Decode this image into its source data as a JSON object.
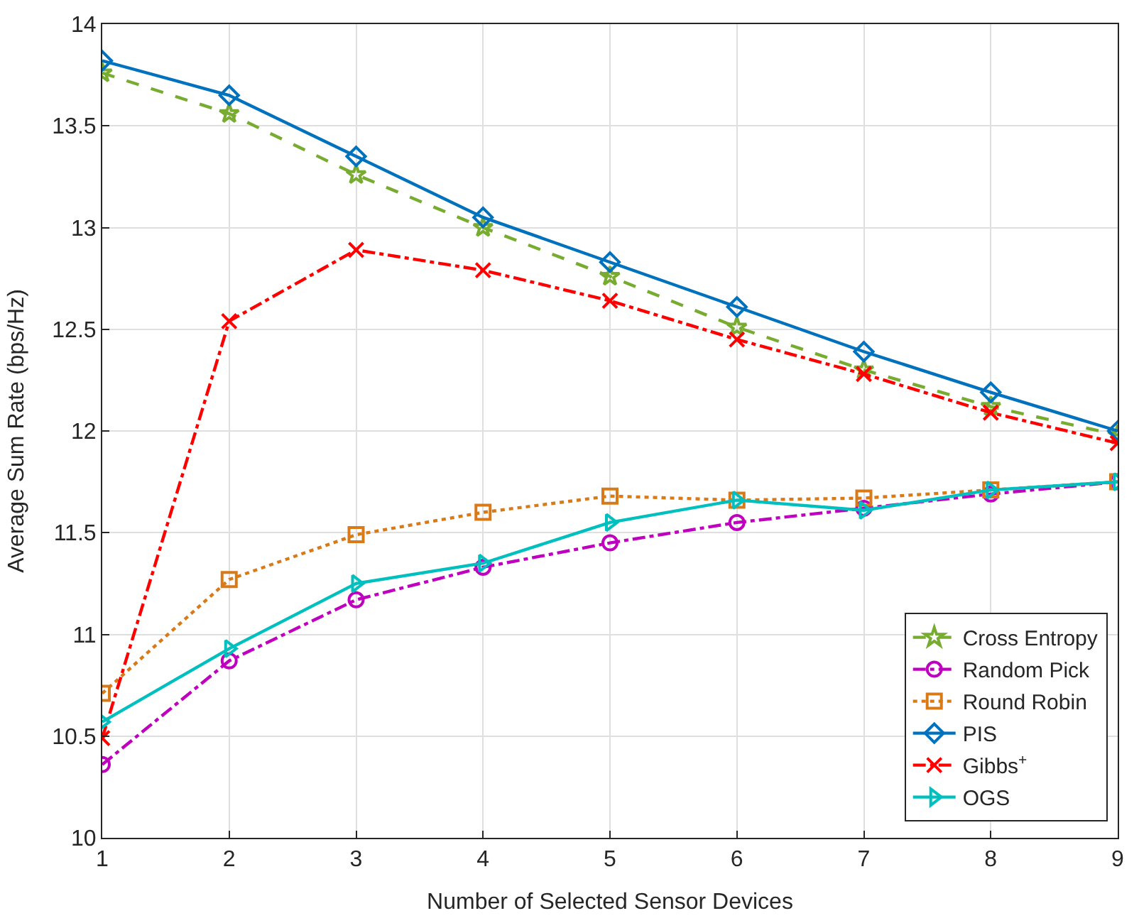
{
  "chart_data": {
    "type": "line",
    "xlabel": "Number of Selected Sensor Devices",
    "ylabel": "Average Sum Rate (bps/Hz)",
    "x": [
      1,
      2,
      3,
      4,
      5,
      6,
      7,
      8,
      9
    ],
    "xlim": [
      1,
      9
    ],
    "xticks": [
      1,
      2,
      3,
      4,
      5,
      6,
      7,
      8,
      9
    ],
    "ylim": [
      10,
      14
    ],
    "yticks": [
      10,
      10.5,
      11,
      11.5,
      12,
      12.5,
      13,
      13.5,
      14
    ],
    "grid": true,
    "legend": "bottom right",
    "series": [
      {
        "name": "Cross Entropy",
        "color": "#77ac30",
        "marker": "star",
        "line_style": "dashed",
        "values": [
          13.76,
          13.56,
          13.26,
          13.0,
          12.76,
          12.51,
          12.3,
          12.12,
          11.98
        ]
      },
      {
        "name": "Random Pick",
        "color": "#bf00bf",
        "marker": "circle",
        "line_style": "dashdot",
        "values": [
          10.36,
          10.87,
          11.17,
          11.33,
          11.45,
          11.55,
          11.62,
          11.69,
          11.75
        ]
      },
      {
        "name": "Round Robin",
        "color": "#d97a19",
        "marker": "square",
        "line_style": "dotted",
        "values": [
          10.71,
          11.27,
          11.49,
          11.6,
          11.68,
          11.66,
          11.67,
          11.71,
          11.75
        ]
      },
      {
        "name": "PIS",
        "color": "#0072bd",
        "marker": "diamond",
        "line_style": "solid",
        "values": [
          13.82,
          13.65,
          13.35,
          13.05,
          12.83,
          12.61,
          12.39,
          12.19,
          12.0
        ]
      },
      {
        "name": "Gibbs$^{+}$",
        "color": "#ff0000",
        "marker": "cross",
        "line_style": "dashdot",
        "values": [
          10.49,
          12.54,
          12.89,
          12.79,
          12.64,
          12.45,
          12.28,
          12.09,
          11.94
        ]
      },
      {
        "name": "OGS",
        "color": "#00bfbf",
        "marker": "triangle",
        "line_style": "solid",
        "values": [
          10.57,
          10.93,
          11.25,
          11.35,
          11.55,
          11.66,
          11.61,
          11.71,
          11.75
        ]
      }
    ]
  }
}
